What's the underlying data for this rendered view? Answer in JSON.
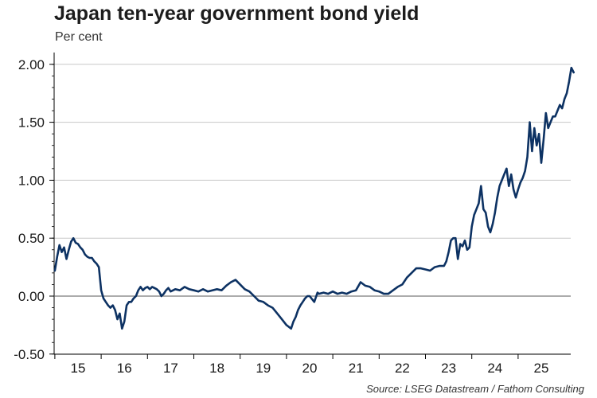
{
  "title": "Japan ten-year government bond yield",
  "unit_label": "Per cent",
  "source": "Source: LSEG Datastream / Fathom Consulting",
  "colors": {
    "line": "#0d3263",
    "grid": "#c8c8c8",
    "axis": "#000000"
  },
  "chart_data": {
    "type": "line",
    "title": "Japan ten-year government bond yield",
    "ylabel": "Per cent",
    "xlabel": "",
    "ylim": [
      -0.5,
      2.0
    ],
    "xlim": [
      2014.5,
      2025.9
    ],
    "yticks": [
      "-0.50",
      "0.00",
      "0.50",
      "1.00",
      "1.50",
      "2.00"
    ],
    "ytick_values": [
      -0.5,
      0,
      0.5,
      1.0,
      1.5,
      2.0
    ],
    "xticks": [
      "15",
      "16",
      "17",
      "18",
      "19",
      "20",
      "21",
      "22",
      "23",
      "24",
      "25"
    ],
    "grid": true,
    "series": [
      {
        "x": [
          2014.5,
          2014.55,
          2014.6,
          2014.65,
          2014.7,
          2014.75,
          2014.8,
          2014.85,
          2014.9,
          2014.95,
          2015.0,
          2015.05,
          2015.1,
          2015.15,
          2015.2,
          2015.25,
          2015.3,
          2015.35,
          2015.4,
          2015.45,
          2015.5,
          2015.55,
          2015.6,
          2015.65,
          2015.7,
          2015.75,
          2015.8,
          2015.85,
          2015.9,
          2015.95,
          2016.0,
          2016.05,
          2016.1,
          2016.15,
          2016.2,
          2016.25,
          2016.3,
          2016.35,
          2016.4,
          2016.45,
          2016.5,
          2016.55,
          2016.6,
          2016.65,
          2016.7,
          2016.75,
          2016.8,
          2016.85,
          2016.9,
          2016.95,
          2017.0,
          2017.1,
          2017.2,
          2017.3,
          2017.4,
          2017.5,
          2017.6,
          2017.7,
          2017.8,
          2017.9,
          2018.0,
          2018.1,
          2018.2,
          2018.3,
          2018.4,
          2018.5,
          2018.6,
          2018.7,
          2018.8,
          2018.9,
          2019.0,
          2019.1,
          2019.2,
          2019.3,
          2019.4,
          2019.5,
          2019.6,
          2019.65,
          2019.7,
          2019.75,
          2019.8,
          2019.85,
          2019.9,
          2019.95,
          2020.0,
          2020.1,
          2020.17,
          2020.2,
          2020.3,
          2020.4,
          2020.5,
          2020.6,
          2020.7,
          2020.8,
          2020.9,
          2021.0,
          2021.1,
          2021.2,
          2021.3,
          2021.4,
          2021.5,
          2021.6,
          2021.7,
          2021.8,
          2021.9,
          2022.0,
          2022.1,
          2022.2,
          2022.3,
          2022.4,
          2022.5,
          2022.6,
          2022.7,
          2022.8,
          2022.9,
          2022.95,
          2023.0,
          2023.05,
          2023.1,
          2023.15,
          2023.2,
          2023.25,
          2023.3,
          2023.35,
          2023.4,
          2023.45,
          2023.5,
          2023.55,
          2023.6,
          2023.65,
          2023.7,
          2023.75,
          2023.8,
          2023.85,
          2023.9,
          2023.95,
          2024.0,
          2024.05,
          2024.1,
          2024.15,
          2024.2,
          2024.25,
          2024.3,
          2024.35,
          2024.4,
          2024.45,
          2024.5,
          2024.55,
          2024.6,
          2024.65,
          2024.7,
          2024.75,
          2024.8,
          2024.85,
          2024.9,
          2024.95,
          2025.0,
          2025.05,
          2025.1,
          2025.15,
          2025.2,
          2025.25,
          2025.3,
          2025.35,
          2025.4,
          2025.45,
          2025.5,
          2025.55,
          2025.6,
          2025.65,
          2025.7
        ],
        "values": [
          0.22,
          0.34,
          0.44,
          0.38,
          0.42,
          0.32,
          0.4,
          0.47,
          0.5,
          0.46,
          0.45,
          0.42,
          0.4,
          0.36,
          0.34,
          0.33,
          0.33,
          0.3,
          0.28,
          0.25,
          0.05,
          -0.02,
          -0.05,
          -0.08,
          -0.1,
          -0.08,
          -0.12,
          -0.2,
          -0.15,
          -0.28,
          -0.22,
          -0.08,
          -0.05,
          -0.05,
          -0.02,
          0.0,
          0.05,
          0.08,
          0.05,
          0.07,
          0.08,
          0.06,
          0.08,
          0.07,
          0.06,
          0.04,
          0.0,
          0.02,
          0.05,
          0.07,
          0.04,
          0.06,
          0.05,
          0.08,
          0.06,
          0.05,
          0.04,
          0.06,
          0.04,
          0.05,
          0.06,
          0.05,
          0.09,
          0.12,
          0.14,
          0.1,
          0.06,
          0.04,
          0.0,
          -0.04,
          -0.05,
          -0.08,
          -0.1,
          -0.15,
          -0.2,
          -0.25,
          -0.28,
          -0.22,
          -0.18,
          -0.12,
          -0.08,
          -0.05,
          -0.02,
          0.0,
          0.0,
          -0.05,
          0.03,
          0.02,
          0.03,
          0.02,
          0.04,
          0.02,
          0.03,
          0.02,
          0.04,
          0.05,
          0.12,
          0.09,
          0.08,
          0.05,
          0.04,
          0.02,
          0.02,
          0.05,
          0.08,
          0.1,
          0.16,
          0.2,
          0.24,
          0.24,
          0.23,
          0.22,
          0.25,
          0.26,
          0.26,
          0.3,
          0.38,
          0.48,
          0.5,
          0.5,
          0.32,
          0.45,
          0.43,
          0.48,
          0.4,
          0.42,
          0.6,
          0.7,
          0.75,
          0.8,
          0.95,
          0.75,
          0.72,
          0.6,
          0.55,
          0.62,
          0.72,
          0.85,
          0.95,
          1.0,
          1.05,
          1.1,
          0.95,
          1.05,
          0.92,
          0.85,
          0.92,
          0.98,
          1.02,
          1.08,
          1.2,
          1.5,
          1.25,
          1.45,
          1.3,
          1.4,
          1.15,
          1.35,
          1.58,
          1.45,
          1.5,
          1.55,
          1.55,
          1.6,
          1.65,
          1.62,
          1.7,
          1.75,
          1.85,
          1.97,
          1.93
        ]
      }
    ]
  }
}
